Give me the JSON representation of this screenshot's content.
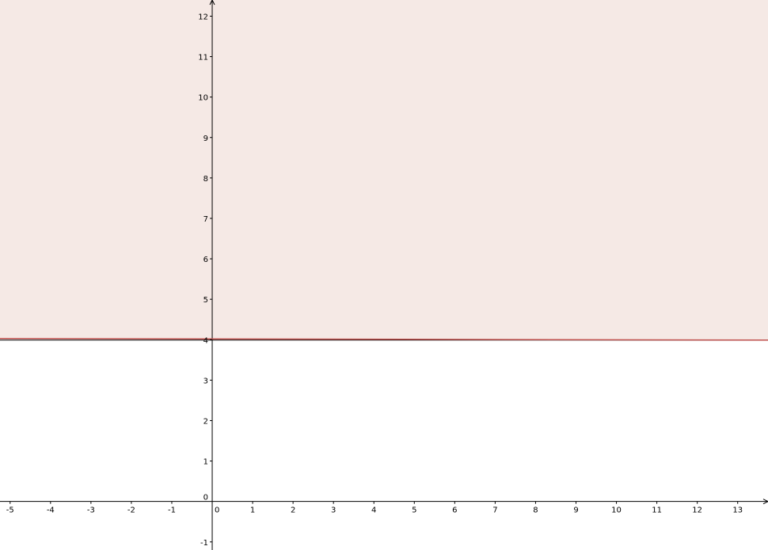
{
  "chart_data": {
    "type": "area",
    "title": "",
    "xlabel": "",
    "ylabel": "",
    "xlim": [
      -5.25,
      13.75
    ],
    "ylim": [
      -1.2,
      12.4
    ],
    "x_ticks": [
      -5,
      -4,
      -3,
      -2,
      -1,
      0,
      1,
      2,
      3,
      4,
      5,
      6,
      7,
      8,
      9,
      10,
      11,
      12,
      13
    ],
    "y_ticks": [
      -1,
      0,
      1,
      2,
      3,
      4,
      5,
      6,
      7,
      8,
      9,
      10,
      11,
      12
    ],
    "x_tick_labels": [
      "-5",
      "-4",
      "-3",
      "-2",
      "-1",
      "0",
      "1",
      "2",
      "3",
      "4",
      "5",
      "6",
      "7",
      "8",
      "9",
      "10",
      "11",
      "12",
      "13"
    ],
    "y_tick_labels": [
      "-1",
      "0",
      "1",
      "2",
      "3",
      "4",
      "5",
      "6",
      "7",
      "8",
      "9",
      "10",
      "11",
      "12"
    ],
    "grid": false,
    "series": [
      {
        "kind": "line",
        "color": "#c0504d",
        "x": [
          -5.25,
          13.75
        ],
        "y": [
          4.03,
          3.99
        ]
      },
      {
        "kind": "line",
        "color": "#000000",
        "x": [
          -5.25,
          13.75
        ],
        "y": [
          3.99,
          3.99
        ]
      }
    ],
    "shaded_region": {
      "bounded_by_series": 0,
      "side": "above",
      "fill_color": "#f5e9e5"
    }
  }
}
